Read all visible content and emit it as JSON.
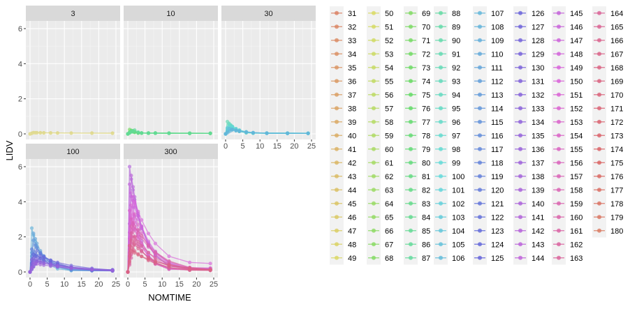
{
  "chart_data": {
    "type": "line",
    "xlabel": "NOMTIME",
    "ylabel": "LIDV",
    "xlim": [
      0,
      25
    ],
    "ylim": [
      0,
      6.2
    ],
    "x_ticks": [
      0,
      5,
      10,
      15,
      20,
      25
    ],
    "y_ticks": [
      0,
      2,
      4,
      6
    ],
    "grid": true,
    "legend_position": "right",
    "times": [
      0,
      0.5,
      1,
      1.5,
      2,
      3,
      4,
      6,
      8,
      12,
      18,
      24
    ],
    "panels": [
      {
        "label": "3",
        "hue_range": [
          55,
          60
        ],
        "ids": [
          31,
          32,
          33,
          34,
          35,
          36,
          37,
          38,
          39,
          40,
          41,
          42,
          43,
          44,
          45,
          46,
          47,
          48,
          49,
          50,
          51,
          52,
          53,
          54,
          55,
          56,
          57,
          58,
          59
        ],
        "series": [
          {
            "peak": 0.07,
            "tmax": 1,
            "decay": 0.05,
            "end": 0.06
          }
        ]
      },
      {
        "label": "10",
        "hue_range": [
          110,
          150
        ],
        "ids": [
          60,
          61,
          62,
          63,
          64,
          65,
          66,
          67,
          68,
          69,
          70,
          71,
          72,
          73,
          74,
          75,
          76,
          77,
          78,
          79,
          80,
          81,
          82,
          83,
          84,
          85,
          86,
          87,
          88,
          89
        ],
        "series": [
          {
            "peak": 0.25,
            "tmax": 0.5,
            "decay": 0.7,
            "end": 0.05
          },
          {
            "peak": 0.2,
            "tmax": 1,
            "decay": 0.6,
            "end": 0.05
          },
          {
            "peak": 0.18,
            "tmax": 1.5,
            "decay": 0.6,
            "end": 0.05
          },
          {
            "peak": 0.15,
            "tmax": 1,
            "decay": 0.5,
            "end": 0.05
          },
          {
            "peak": 0.22,
            "tmax": 2,
            "decay": 0.7,
            "end": 0.05
          }
        ]
      },
      {
        "label": "30",
        "hue_range": [
          160,
          200
        ],
        "ids": [
          90,
          91,
          92,
          93,
          94,
          95,
          96,
          97,
          98,
          99,
          100,
          101,
          102,
          103,
          104,
          105,
          106,
          107,
          108,
          109,
          110,
          111,
          112,
          113,
          114,
          115,
          116,
          117
        ],
        "series": [
          {
            "peak": 0.7,
            "tmax": 0.5,
            "decay": 0.45,
            "end": 0.05
          },
          {
            "peak": 0.6,
            "tmax": 1,
            "decay": 0.4,
            "end": 0.05
          },
          {
            "peak": 0.5,
            "tmax": 1.5,
            "decay": 0.35,
            "end": 0.05
          },
          {
            "peak": 0.45,
            "tmax": 1,
            "decay": 0.3,
            "end": 0.06
          },
          {
            "peak": 0.4,
            "tmax": 2,
            "decay": 0.3,
            "end": 0.05
          },
          {
            "peak": 0.35,
            "tmax": 0.5,
            "decay": 0.25,
            "end": 0.05
          },
          {
            "peak": 0.3,
            "tmax": 1,
            "decay": 0.25,
            "end": 0.05
          },
          {
            "peak": 0.25,
            "tmax": 2,
            "decay": 0.2,
            "end": 0.05
          }
        ]
      },
      {
        "label": "100",
        "hue_range": [
          200,
          270
        ],
        "ids": [
          118,
          119,
          120,
          121,
          122,
          123,
          124,
          125,
          126,
          127,
          128,
          129,
          130,
          131,
          132,
          133,
          134,
          135,
          136,
          137,
          138,
          139,
          140,
          141,
          142,
          143,
          144,
          145,
          146
        ],
        "series": [
          {
            "peak": 2.5,
            "tmax": 0.5,
            "decay": 0.35,
            "end": 0.1
          },
          {
            "peak": 2.2,
            "tmax": 1,
            "decay": 0.3,
            "end": 0.12
          },
          {
            "peak": 1.8,
            "tmax": 1,
            "decay": 0.25,
            "end": 0.15
          },
          {
            "peak": 1.5,
            "tmax": 1.5,
            "decay": 0.2,
            "end": 0.1
          },
          {
            "peak": 1.3,
            "tmax": 0.5,
            "decay": 0.2,
            "end": 0.12
          },
          {
            "peak": 1.2,
            "tmax": 2,
            "decay": 0.15,
            "end": 0.1
          },
          {
            "peak": 1.0,
            "tmax": 1,
            "decay": 0.12,
            "end": 0.2
          },
          {
            "peak": 0.9,
            "tmax": 3,
            "decay": 0.1,
            "end": 0.1
          },
          {
            "peak": 0.8,
            "tmax": 1,
            "decay": 0.1,
            "end": 0.1
          },
          {
            "peak": 0.7,
            "tmax": 0.5,
            "decay": 0.1,
            "end": 0.12
          },
          {
            "peak": 0.6,
            "tmax": 2,
            "decay": 0.08,
            "end": 0.1
          },
          {
            "peak": 0.5,
            "tmax": 1,
            "decay": 0.08,
            "end": 0.1
          }
        ]
      },
      {
        "label": "300",
        "hue_range": [
          280,
          345
        ],
        "ids": [
          147,
          148,
          149,
          150,
          151,
          152,
          153,
          154,
          155,
          156,
          157,
          158,
          159,
          160,
          161,
          162,
          163,
          164,
          165,
          166,
          167,
          168,
          169,
          170,
          171,
          172,
          173,
          174,
          175,
          176,
          177,
          178,
          179,
          180
        ],
        "series": [
          {
            "peak": 6.0,
            "tmax": 0.5,
            "decay": 0.25,
            "end": 0.3
          },
          {
            "peak": 5.5,
            "tmax": 1,
            "decay": 0.25,
            "end": 0.3
          },
          {
            "peak": 5.0,
            "tmax": 0.5,
            "decay": 0.3,
            "end": 0.25
          },
          {
            "peak": 4.5,
            "tmax": 1,
            "decay": 0.2,
            "end": 0.2
          },
          {
            "peak": 4.3,
            "tmax": 1.5,
            "decay": 0.2,
            "end": 0.3
          },
          {
            "peak": 4.0,
            "tmax": 2,
            "decay": 0.15,
            "end": 0.75
          },
          {
            "peak": 3.8,
            "tmax": 1,
            "decay": 0.3,
            "end": 0.2
          },
          {
            "peak": 3.5,
            "tmax": 0.5,
            "decay": 0.25,
            "end": 0.25
          },
          {
            "peak": 3.3,
            "tmax": 2,
            "decay": 0.2,
            "end": 0.2
          },
          {
            "peak": 3.0,
            "tmax": 1,
            "decay": 0.2,
            "end": 0.35
          },
          {
            "peak": 2.8,
            "tmax": 1.5,
            "decay": 0.15,
            "end": 0.2
          },
          {
            "peak": 2.6,
            "tmax": 1,
            "decay": 0.25,
            "end": 0.15
          },
          {
            "peak": 2.4,
            "tmax": 3,
            "decay": 0.15,
            "end": 0.2
          },
          {
            "peak": 2.2,
            "tmax": 1,
            "decay": 0.2,
            "end": 0.15
          },
          {
            "peak": 2.0,
            "tmax": 2,
            "decay": 0.15,
            "end": 0.2
          },
          {
            "peak": 1.8,
            "tmax": 1,
            "decay": 0.15,
            "end": 0.2
          },
          {
            "peak": 1.5,
            "tmax": 0.5,
            "decay": 0.15,
            "end": 0.15
          },
          {
            "peak": 1.2,
            "tmax": 1,
            "decay": 0.1,
            "end": 0.2
          }
        ]
      }
    ],
    "legend": {
      "from": 31,
      "to": 180,
      "per_column": 19,
      "hue_start": 15,
      "hue_end": 375
    }
  }
}
